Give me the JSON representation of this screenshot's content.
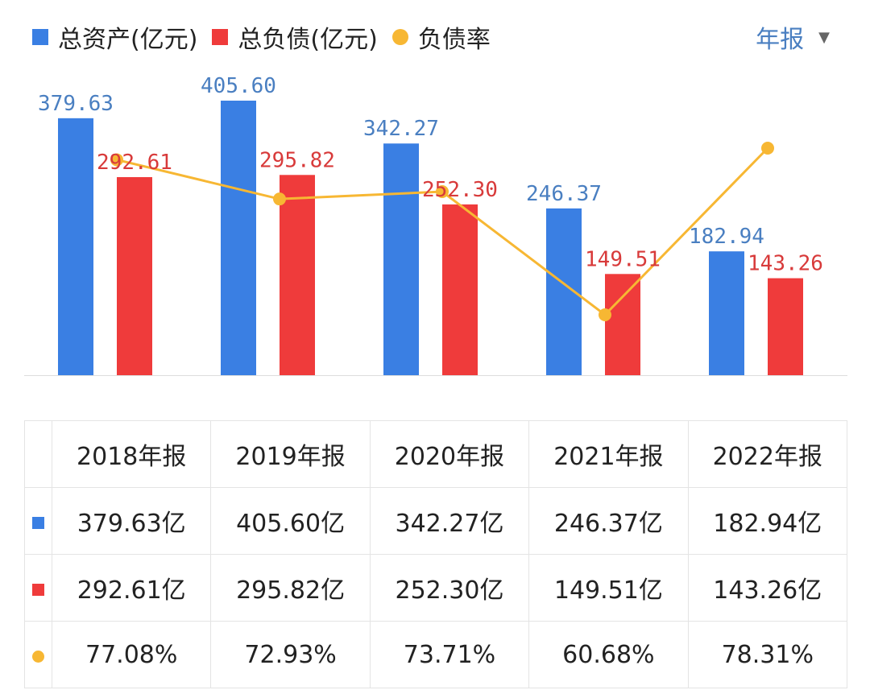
{
  "legend": {
    "items": [
      {
        "label": "总资产(亿元)",
        "shape": "square",
        "color": "#3a7fe3"
      },
      {
        "label": "总负债(亿元)",
        "shape": "square",
        "color": "#ef3b3b"
      },
      {
        "label": "负债率",
        "shape": "dot",
        "color": "#f7b733"
      }
    ]
  },
  "period_selector": {
    "label": "年报",
    "icon": "caret-down-icon",
    "color": "#4a7fc1"
  },
  "chart_data": {
    "type": "bar",
    "categories": [
      "2018年报",
      "2019年报",
      "2020年报",
      "2021年报",
      "2022年报"
    ],
    "series": [
      {
        "name": "总资产(亿元)",
        "type": "bar",
        "color": "#3a7fe3",
        "label_color": "#4a7fc1",
        "values": [
          379.63,
          405.6,
          342.27,
          246.37,
          182.94
        ],
        "labels": [
          "379.63",
          "405.60",
          "342.27",
          "246.37",
          "182.94"
        ]
      },
      {
        "name": "总负债(亿元)",
        "type": "bar",
        "color": "#ef3b3b",
        "label_color": "#d83a3a",
        "values": [
          292.61,
          295.82,
          252.3,
          149.51,
          143.26
        ],
        "labels": [
          "292.61",
          "295.82",
          "252.30",
          "149.51",
          "143.26"
        ]
      },
      {
        "name": "负债率",
        "type": "line",
        "color": "#f7b733",
        "values": [
          77.08,
          72.93,
          73.71,
          60.68,
          78.31
        ]
      }
    ],
    "ylim": [
      0,
      420
    ],
    "rate_axis": [
      45,
      85
    ],
    "grid": false,
    "legend_position": "top-left"
  },
  "table": {
    "header": [
      "2018年报",
      "2019年报",
      "2020年报",
      "2021年报",
      "2022年报"
    ],
    "rows": [
      {
        "marker": "square",
        "color": "#3a7fe3",
        "cells": [
          "379.63亿",
          "405.60亿",
          "342.27亿",
          "246.37亿",
          "182.94亿"
        ]
      },
      {
        "marker": "square",
        "color": "#ef3b3b",
        "cells": [
          "292.61亿",
          "295.82亿",
          "252.30亿",
          "149.51亿",
          "143.26亿"
        ]
      },
      {
        "marker": "dot",
        "color": "#f7b733",
        "cells": [
          "77.08%",
          "72.93%",
          "73.71%",
          "60.68%",
          "78.31%"
        ]
      }
    ]
  }
}
